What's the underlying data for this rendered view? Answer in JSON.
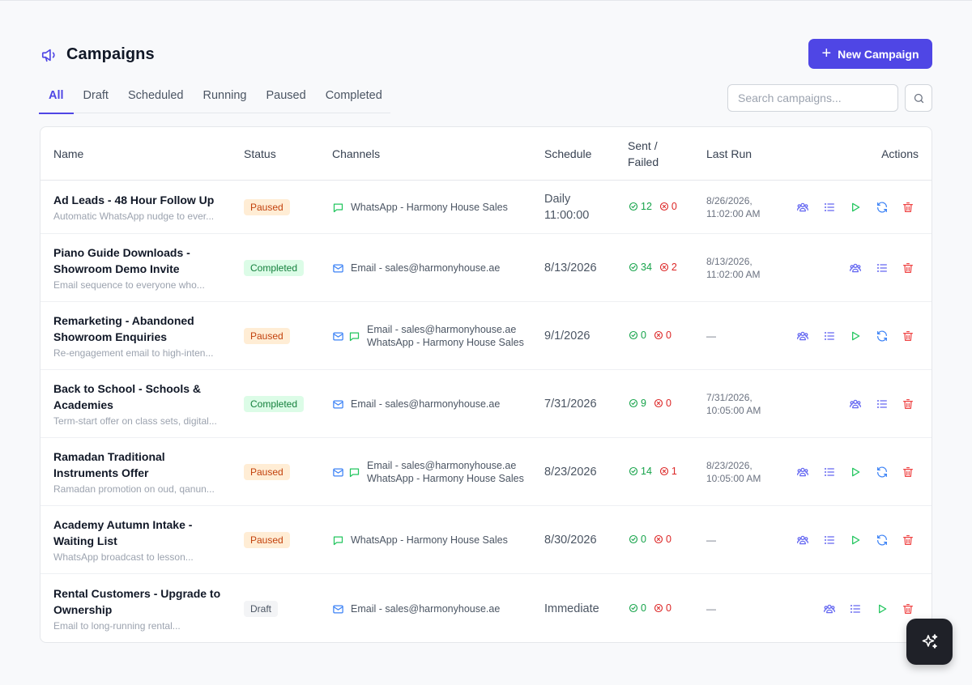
{
  "page": {
    "title": "Campaigns",
    "new_button": "New Campaign"
  },
  "tabs": [
    {
      "label": "All",
      "active": true
    },
    {
      "label": "Draft"
    },
    {
      "label": "Scheduled"
    },
    {
      "label": "Running"
    },
    {
      "label": "Paused"
    },
    {
      "label": "Completed"
    }
  ],
  "search": {
    "placeholder": "Search campaigns...",
    "value": ""
  },
  "table": {
    "headers": {
      "name": "Name",
      "status": "Status",
      "channels": "Channels",
      "schedule": "Schedule",
      "sent_failed_1": "Sent /",
      "sent_failed_2": "Failed",
      "last_run": "Last Run",
      "actions": "Actions"
    },
    "rows": [
      {
        "name": [
          "Ad Leads - 48 Hour Follow Up"
        ],
        "desc": "Automatic WhatsApp nudge to ever...",
        "status": "Paused",
        "channels": [
          "WhatsApp - Harmony House Sales"
        ],
        "channel_icons": [
          "chat"
        ],
        "schedule": [
          "Daily",
          "11:00:00"
        ],
        "sent": "12",
        "failed": "0",
        "last_run": [
          "8/26/2026,",
          "11:02:00 AM"
        ],
        "actions": [
          "audience",
          "list",
          "run",
          "refresh",
          "delete"
        ]
      },
      {
        "name": [
          "Piano Guide Downloads -",
          "Showroom Demo Invite"
        ],
        "desc": "Email sequence to everyone who...",
        "status": "Completed",
        "channels": [
          "Email - sales@harmonyhouse.ae"
        ],
        "channel_icons": [
          "mail"
        ],
        "schedule": [
          "8/13/2026"
        ],
        "sent": "34",
        "failed": "2",
        "last_run": [
          "8/13/2026,",
          "11:02:00 AM"
        ],
        "actions": [
          "audience",
          "list",
          "delete"
        ]
      },
      {
        "name": [
          "Remarketing - Abandoned",
          "Showroom Enquiries"
        ],
        "desc": "Re-engagement email to high-inten...",
        "status": "Paused",
        "channels": [
          "Email - sales@harmonyhouse.ae",
          "WhatsApp - Harmony House Sales"
        ],
        "channel_icons": [
          "mail",
          "chat"
        ],
        "schedule": [
          "9/1/2026"
        ],
        "sent": "0",
        "failed": "0",
        "last_run": [
          "—"
        ],
        "actions": [
          "audience",
          "list",
          "run",
          "refresh",
          "delete"
        ]
      },
      {
        "name": [
          "Back to School - Schools &",
          "Academies"
        ],
        "desc": "Term-start offer on class sets, digital...",
        "status": "Completed",
        "channels": [
          "Email - sales@harmonyhouse.ae"
        ],
        "channel_icons": [
          "mail"
        ],
        "schedule": [
          "7/31/2026"
        ],
        "sent": "9",
        "failed": "0",
        "last_run": [
          "7/31/2026,",
          "10:05:00 AM"
        ],
        "actions": [
          "audience",
          "list",
          "delete"
        ]
      },
      {
        "name": [
          "Ramadan Traditional",
          "Instruments Offer"
        ],
        "desc": "Ramadan promotion on oud, qanun...",
        "status": "Paused",
        "channels": [
          "Email - sales@harmonyhouse.ae",
          "WhatsApp - Harmony House Sales"
        ],
        "channel_icons": [
          "mail",
          "chat"
        ],
        "schedule": [
          "8/23/2026"
        ],
        "sent": "14",
        "failed": "1",
        "last_run": [
          "8/23/2026,",
          "10:05:00 AM"
        ],
        "actions": [
          "audience",
          "list",
          "run",
          "refresh",
          "delete"
        ]
      },
      {
        "name": [
          "Academy Autumn Intake -",
          "Waiting List"
        ],
        "desc": "WhatsApp broadcast to lesson...",
        "status": "Paused",
        "channels": [
          "WhatsApp - Harmony House Sales"
        ],
        "channel_icons": [
          "chat"
        ],
        "schedule": [
          "8/30/2026"
        ],
        "sent": "0",
        "failed": "0",
        "last_run": [
          "—"
        ],
        "actions": [
          "audience",
          "list",
          "run",
          "refresh",
          "delete"
        ]
      },
      {
        "name": [
          "Rental Customers - Upgrade to",
          "Ownership"
        ],
        "desc": "Email to long-running rental...",
        "status": "Draft",
        "channels": [
          "Email - sales@harmonyhouse.ae"
        ],
        "channel_icons": [
          "mail"
        ],
        "schedule": [
          "Immediate"
        ],
        "sent": "0",
        "failed": "0",
        "last_run": [
          "—"
        ],
        "actions": [
          "audience",
          "list",
          "run",
          "delete"
        ]
      }
    ]
  },
  "colors": {
    "accent": "#4f46e5",
    "success": "#16a34a",
    "danger": "#dc2626",
    "paused_bg": "#ffedd5",
    "completed_bg": "#dcfce7"
  },
  "fab": {
    "icon": "sparkles-icon"
  }
}
